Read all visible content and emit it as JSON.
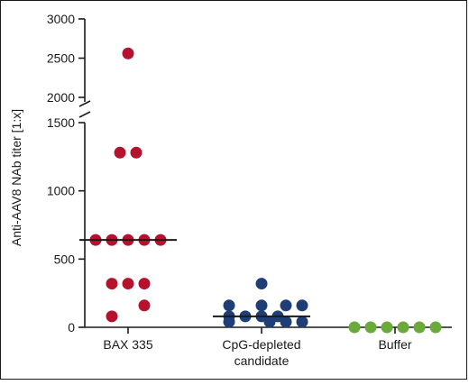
{
  "chart_data": {
    "type": "scatter",
    "ylabel": "Anti-AAV8 NAb titer [1:x]",
    "y_axis_break": [
      1500,
      2000
    ],
    "ylim_lower": [
      0,
      1500
    ],
    "ylim_upper": [
      2000,
      3000
    ],
    "y_ticks_lower": [
      "0",
      "500",
      "1000",
      "1500"
    ],
    "y_ticks_upper": [
      "2000",
      "2500",
      "3000"
    ],
    "categories": [
      "BAX 335",
      "CpG-depleted\ncandidate",
      "Buffer"
    ],
    "category_lines": [
      [
        "BAX 335"
      ],
      [
        "CpG-depleted",
        "candidate"
      ],
      [
        "Buffer"
      ]
    ],
    "groups": [
      {
        "category": "BAX 335",
        "color": "#b5122e",
        "median": 640,
        "points": [
          {
            "x": 0,
            "y": 2560
          },
          {
            "x": -0.5,
            "y": 1280
          },
          {
            "x": 0.5,
            "y": 1280
          },
          {
            "x": -2,
            "y": 640
          },
          {
            "x": -1,
            "y": 640
          },
          {
            "x": 0,
            "y": 640
          },
          {
            "x": 1,
            "y": 640
          },
          {
            "x": 2,
            "y": 640
          },
          {
            "x": -1,
            "y": 320
          },
          {
            "x": 0,
            "y": 320
          },
          {
            "x": 1,
            "y": 320
          },
          {
            "x": 1,
            "y": 160
          },
          {
            "x": -1,
            "y": 80
          }
        ]
      },
      {
        "category": "CpG-depleted candidate",
        "color": "#1f3e75",
        "median": 80,
        "points": [
          {
            "x": 0,
            "y": 320
          },
          {
            "x": -2,
            "y": 160
          },
          {
            "x": 0,
            "y": 160
          },
          {
            "x": 1.5,
            "y": 160
          },
          {
            "x": 2.5,
            "y": 160
          },
          {
            "x": -2,
            "y": 80
          },
          {
            "x": -1,
            "y": 80
          },
          {
            "x": 0,
            "y": 80
          },
          {
            "x": 1,
            "y": 80
          },
          {
            "x": -2,
            "y": 40
          },
          {
            "x": 0.5,
            "y": 40
          },
          {
            "x": 1.5,
            "y": 40
          },
          {
            "x": 2.5,
            "y": 40
          }
        ]
      },
      {
        "category": "Buffer",
        "color": "#6aaa3a",
        "median": null,
        "points": [
          {
            "x": -2.5,
            "y": 0
          },
          {
            "x": -1.5,
            "y": 0
          },
          {
            "x": -0.5,
            "y": 0
          },
          {
            "x": 0.5,
            "y": 0
          },
          {
            "x": 1.5,
            "y": 0
          },
          {
            "x": 2.5,
            "y": 0
          }
        ]
      }
    ]
  }
}
